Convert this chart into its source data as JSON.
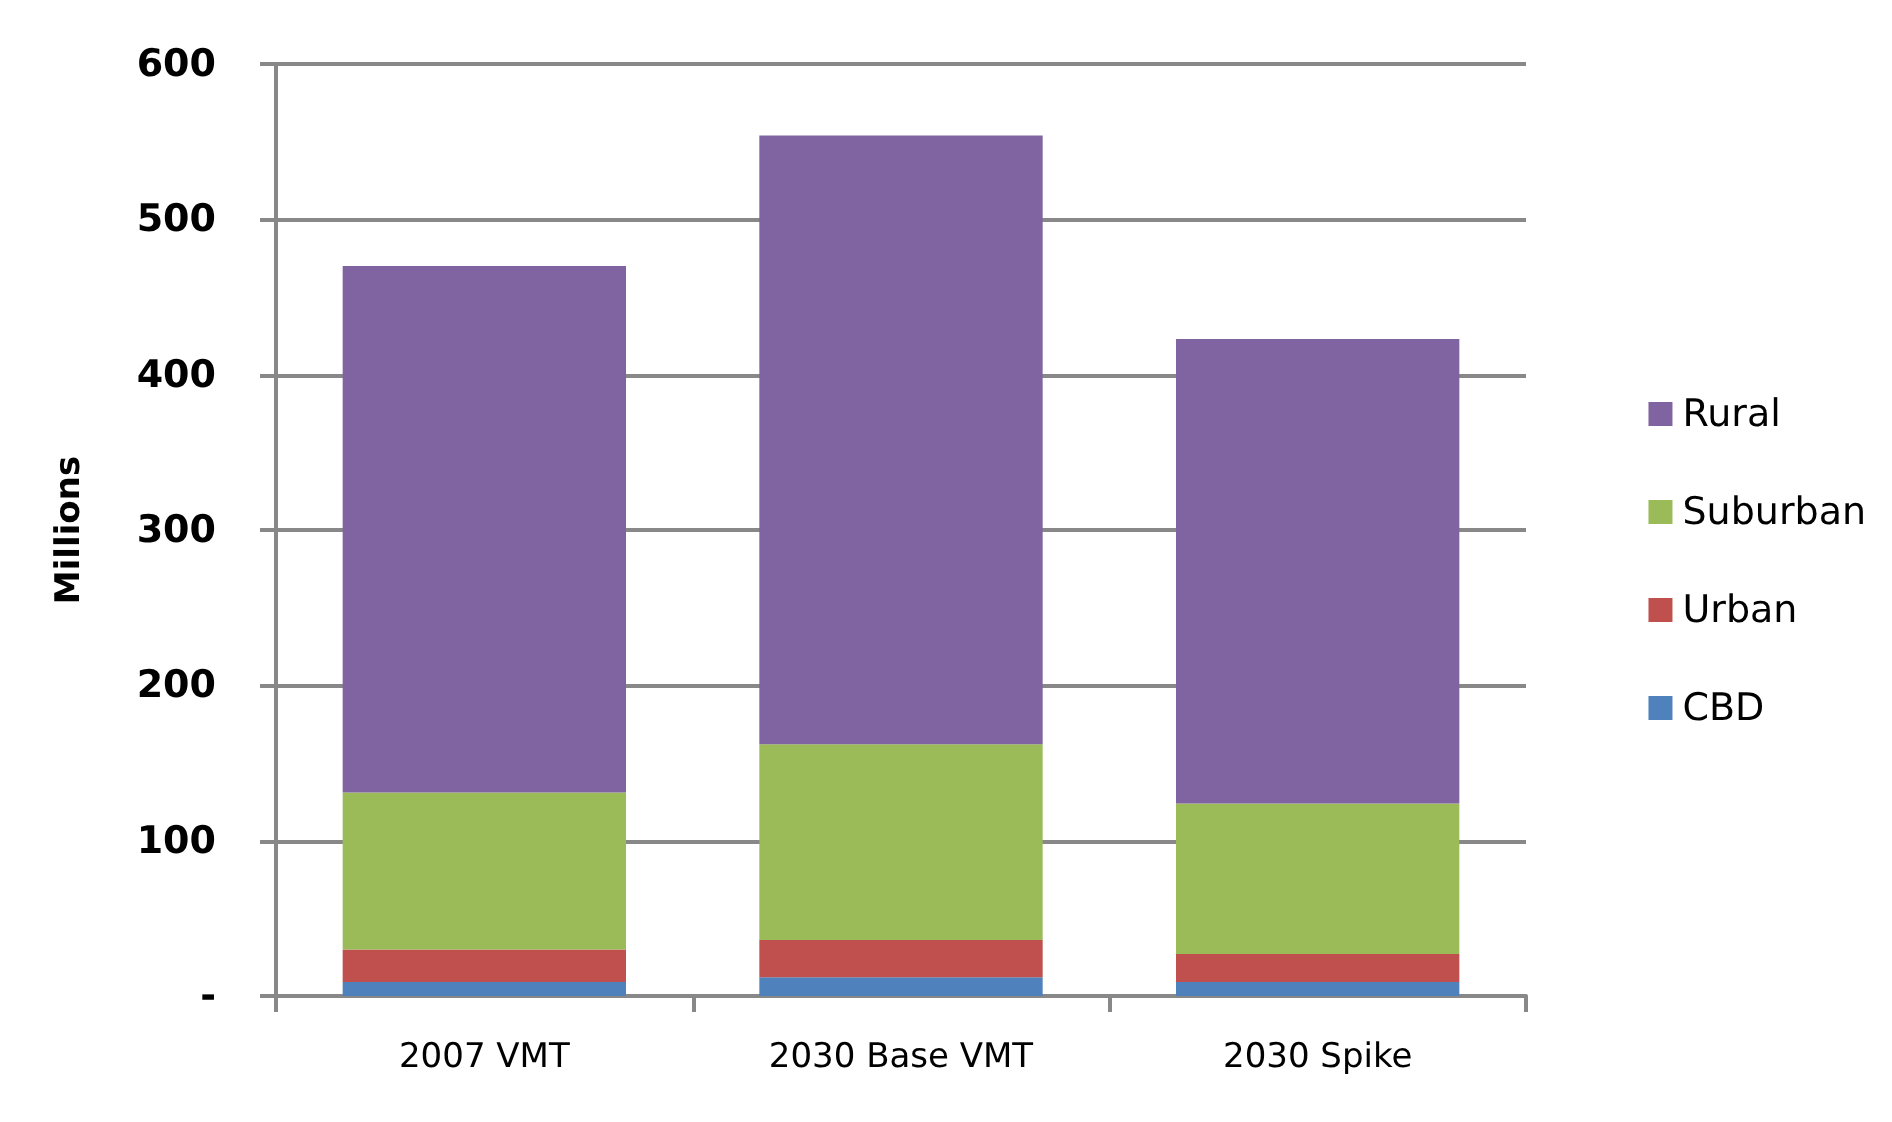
{
  "chart_data": {
    "type": "bar",
    "stacked": true,
    "ylabel": "Millions",
    "categories": [
      "2007 VMT",
      "2030 Base VMT",
      "2030 Spike"
    ],
    "series": [
      {
        "name": "CBD",
        "color": "#4f81bd",
        "values": [
          9,
          12,
          9
        ]
      },
      {
        "name": "Urban",
        "color": "#c0504d",
        "values": [
          21,
          24,
          18
        ]
      },
      {
        "name": "Suburban",
        "color": "#9bbb59",
        "values": [
          101,
          126,
          97
        ]
      },
      {
        "name": "Rural",
        "color": "#8064a2",
        "values": [
          339,
          392,
          299
        ]
      }
    ],
    "ylim": [
      0,
      600
    ],
    "yticks": [
      {
        "value": 0,
        "label": "-"
      },
      100,
      200,
      300,
      400,
      500,
      600
    ],
    "grid": "y",
    "legend": "right"
  }
}
